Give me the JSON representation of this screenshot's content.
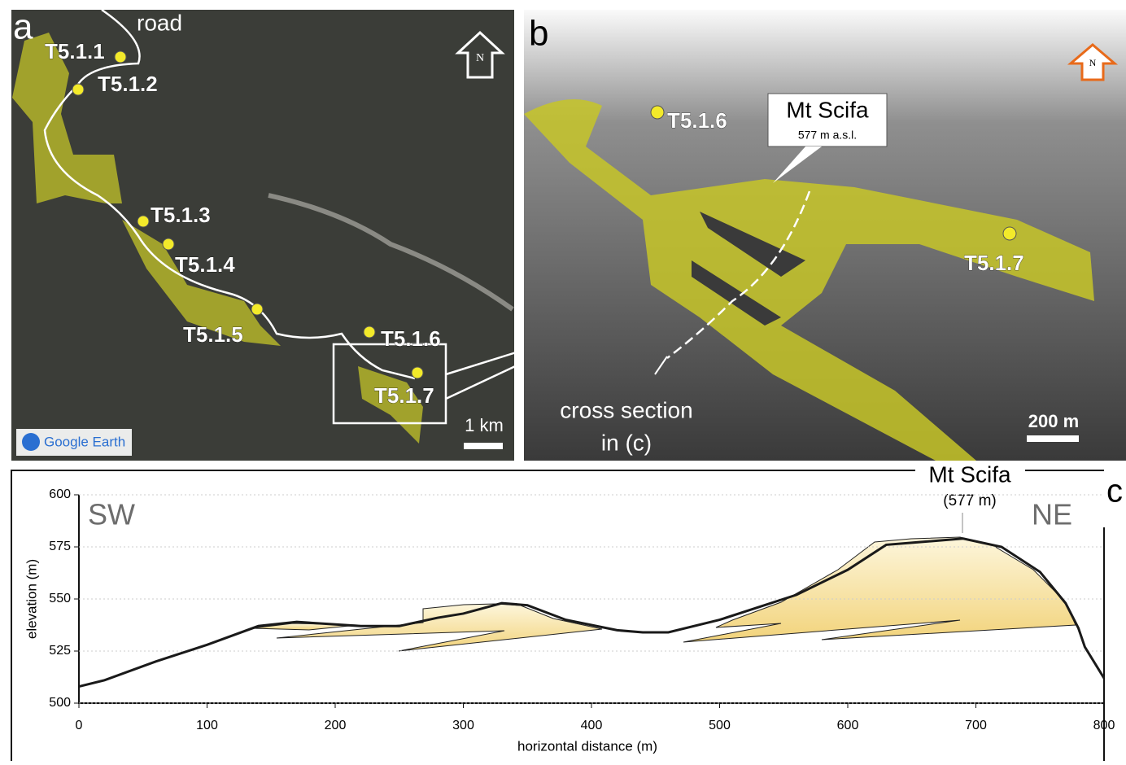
{
  "panel_a": {
    "letter": "a",
    "road_label": "road",
    "north": "N",
    "logo": "Google Earth",
    "sites": [
      "T5.1.1",
      "T5.1.2",
      "T5.1.3",
      "T5.1.4",
      "T5.1.5",
      "T5.1.6",
      "T5.1.7"
    ],
    "scale_label": "1 km"
  },
  "panel_b": {
    "letter": "b",
    "north": "N",
    "peak_name": "Mt Scifa",
    "peak_elevation": "577 m  a.s.l.",
    "sites": [
      "T5.1.6",
      "T5.1.7"
    ],
    "cross_section_label": [
      "cross section",
      "in (c)"
    ],
    "scale_label": "200 m"
  },
  "chart_data": {
    "type": "line",
    "panel_letter": "c",
    "xlabel": "horizontal distance (m)",
    "ylabel": "elevation (m)",
    "left_label": "SW",
    "right_label": "NE",
    "peak_label": "Mt Scifa",
    "peak_sublabel": "(577 m)",
    "xlim": [
      0,
      800
    ],
    "ylim": [
      500,
      600
    ],
    "xticks": [
      0,
      100,
      200,
      300,
      400,
      500,
      600,
      700,
      800
    ],
    "yticks": [
      500,
      525,
      550,
      575,
      600
    ],
    "grid": true,
    "color": "#1a1a1a",
    "x": [
      0,
      20,
      60,
      100,
      140,
      170,
      220,
      250,
      280,
      300,
      330,
      350,
      380,
      420,
      440,
      460,
      500,
      560,
      600,
      630,
      650,
      690,
      720,
      750,
      770,
      780,
      785,
      800
    ],
    "values": [
      508,
      511,
      520,
      528,
      537,
      539,
      537,
      537,
      541,
      543,
      548,
      547,
      540,
      535,
      534,
      534,
      540,
      552,
      564,
      576,
      577,
      579,
      575,
      563,
      548,
      536,
      527,
      512
    ]
  }
}
